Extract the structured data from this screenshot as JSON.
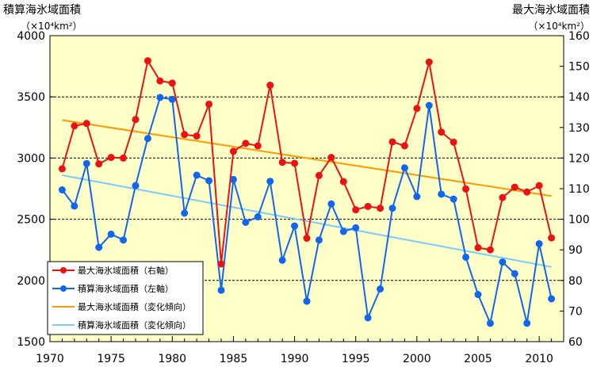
{
  "chart_data": {
    "type": "line",
    "title_left": "積算海氷域面積",
    "unit_left": "（×10⁴km²）",
    "title_right": "最大海氷域面積",
    "unit_right": "（×10⁴km²）",
    "x_ticks": [
      "1970",
      "1975",
      "1980",
      "1985",
      "1990",
      "1995",
      "2000",
      "2005",
      "2010"
    ],
    "y_left_ticks": [
      "1500",
      "2000",
      "2500",
      "3000",
      "3500",
      "4000"
    ],
    "y_right_ticks": [
      "60",
      "70",
      "80",
      "90",
      "100",
      "110",
      "120",
      "130",
      "140",
      "150",
      "160"
    ],
    "xlim": [
      1970,
      2012
    ],
    "ylim_left": [
      1500,
      4000
    ],
    "ylim_right": [
      60,
      160
    ],
    "grid": "horizontal dashed",
    "legend_position": "bottom-left",
    "colors": {
      "plot_background": "#FFFFC8",
      "max_area": "#EE1111",
      "accum_area": "#1166EE",
      "max_trend": "#FF9900",
      "accum_trend": "#77CCFF"
    },
    "series": [
      {
        "name": "最大海氷域面積（右軸）",
        "axis": "right",
        "x": [
          1971,
          1972,
          1973,
          1974,
          1975,
          1976,
          1977,
          1978,
          1979,
          1980,
          1981,
          1982,
          1983,
          1984,
          1985,
          1986,
          1987,
          1988,
          1989,
          1990,
          1991,
          1992,
          1993,
          1994,
          1995,
          1996,
          1997,
          1998,
          1999,
          2000,
          2001,
          2002,
          2003,
          2004,
          2005,
          2006,
          2007,
          2008,
          2009,
          2010,
          2011
        ],
        "values": [
          116.5,
          130.5,
          131.3,
          118.1,
          120.2,
          120.0,
          132.6,
          151.8,
          145.2,
          144.5,
          127.7,
          127.2,
          137.6,
          85.4,
          122.2,
          124.8,
          124.0,
          143.8,
          118.6,
          118.3,
          93.8,
          114.3,
          120.2,
          112.3,
          103.1,
          104.2,
          103.6,
          125.3,
          124.0,
          136.2,
          151.4,
          128.5,
          125.2,
          109.9,
          90.7,
          90.0,
          107.1,
          110.5,
          108.9,
          111.0,
          93.9
        ]
      },
      {
        "name": "積算海氷域面積（左軸）",
        "axis": "left",
        "x": [
          1971,
          1972,
          1973,
          1974,
          1975,
          1976,
          1977,
          1978,
          1979,
          1980,
          1981,
          1982,
          1983,
          1984,
          1985,
          1986,
          1987,
          1988,
          1989,
          1990,
          1991,
          1992,
          1993,
          1994,
          1995,
          1996,
          1997,
          1998,
          1999,
          2000,
          2001,
          2002,
          2003,
          2004,
          2005,
          2006,
          2007,
          2008,
          2009,
          2010,
          2011
        ],
        "values": [
          2740,
          2608,
          2955,
          2270,
          2378,
          2330,
          2775,
          3160,
          3495,
          3480,
          2550,
          2860,
          2815,
          1920,
          2825,
          2475,
          2520,
          2810,
          2165,
          2445,
          1830,
          2330,
          2625,
          2400,
          2430,
          1695,
          1930,
          2590,
          2920,
          2685,
          3430,
          2705,
          2665,
          2190,
          1885,
          1650,
          2150,
          2055,
          1650,
          2300,
          1850
        ]
      },
      {
        "name": "最大海氷域面積（変化傾向）",
        "axis": "right",
        "trend": [
          [
            1971,
            132.4
          ],
          [
            2011,
            107.6
          ]
        ]
      },
      {
        "name": "積算海氷域面積（変化傾向）",
        "axis": "left",
        "trend": [
          [
            1971,
            2860
          ],
          [
            2011,
            2110
          ]
        ]
      }
    ]
  }
}
